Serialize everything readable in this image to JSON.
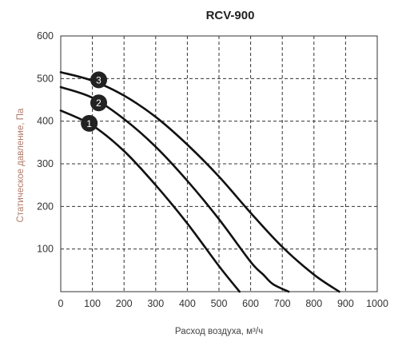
{
  "chart_data": {
    "type": "line",
    "title": "RCV-900",
    "xlabel": "Расход воздуха, м³/ч",
    "ylabel": "Статическое давление, Па",
    "xlim": [
      0,
      1000
    ],
    "ylim": [
      0,
      600
    ],
    "xticks": [
      "0",
      "100",
      "200",
      "300",
      "400",
      "500",
      "600",
      "700",
      "800",
      "900",
      "1000"
    ],
    "yticks": [
      "100",
      "200",
      "300",
      "400",
      "500",
      "600"
    ],
    "grid": true,
    "legend": "none",
    "series": [
      {
        "marker": "1",
        "marker_at": [
          90,
          395
        ],
        "points": [
          [
            0,
            425
          ],
          [
            100,
            390
          ],
          [
            200,
            330
          ],
          [
            300,
            250
          ],
          [
            400,
            160
          ],
          [
            500,
            60
          ],
          [
            565,
            0
          ]
        ]
      },
      {
        "marker": "2",
        "marker_at": [
          120,
          443
        ],
        "points": [
          [
            0,
            480
          ],
          [
            100,
            455
          ],
          [
            200,
            405
          ],
          [
            300,
            340
          ],
          [
            400,
            260
          ],
          [
            500,
            170
          ],
          [
            600,
            70
          ],
          [
            640,
            40
          ],
          [
            670,
            18
          ],
          [
            720,
            0
          ]
        ]
      },
      {
        "marker": "3",
        "marker_at": [
          120,
          497
        ],
        "points": [
          [
            0,
            515
          ],
          [
            100,
            495
          ],
          [
            200,
            460
          ],
          [
            300,
            410
          ],
          [
            400,
            345
          ],
          [
            500,
            270
          ],
          [
            600,
            185
          ],
          [
            700,
            105
          ],
          [
            800,
            40
          ],
          [
            880,
            0
          ]
        ]
      }
    ]
  }
}
